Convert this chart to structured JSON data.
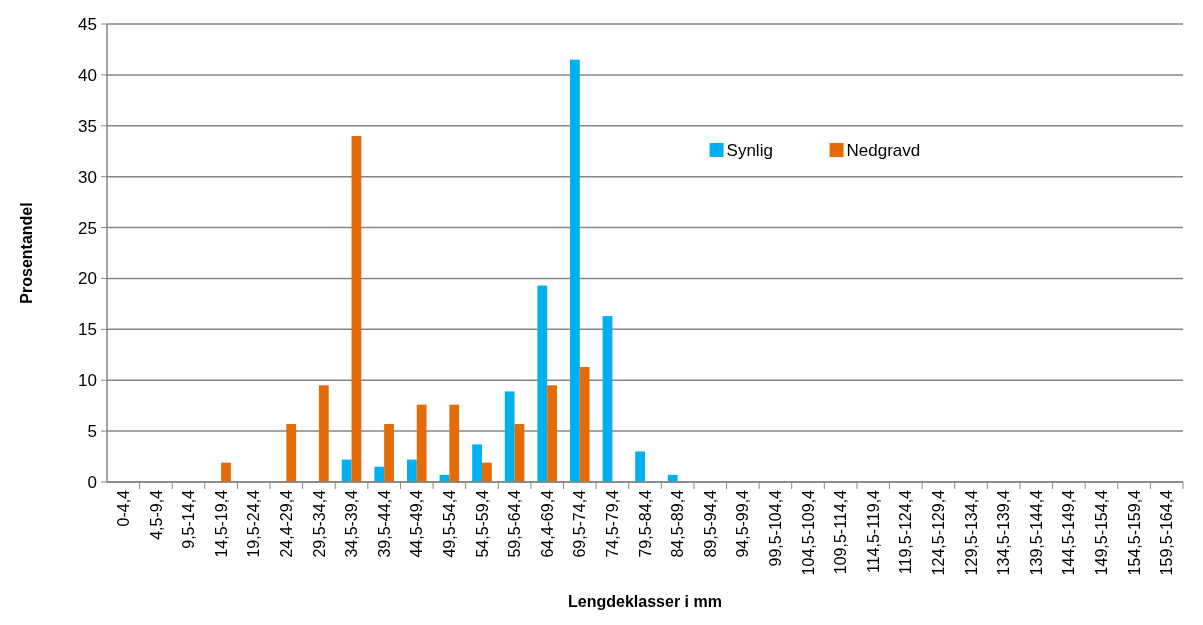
{
  "chart_data": {
    "type": "bar",
    "xlabel": "Lengdeklasser i mm",
    "ylabel": "Prosentandel",
    "categories": [
      "0-4,4",
      "4,5-9,4",
      "9,5-14,4",
      "14,5-19,4",
      "19,5-24,4",
      "24,4-29,4",
      "29,5-34,4",
      "34,5-39,4",
      "39,5-44,4",
      "44,5-49,4",
      "49,5-54,4",
      "54,5-59,4",
      "59,5-64,4",
      "64,4-69,4",
      "69,5-74,4",
      "74,5-79,4",
      "79,5-84,4",
      "84,5-89,4",
      "89,5-94,4",
      "94,5-99,4",
      "99,5-104,4",
      "104,5-109,4",
      "109,5-114,4",
      "114,5-119,4",
      "119,5-124,4",
      "124,5-129,4",
      "129,5-134,4",
      "134,5-139,4",
      "139,5-144,4",
      "144,5-149,4",
      "149,5-154,4",
      "154,5-159,4",
      "159,5-164,4"
    ],
    "series": [
      {
        "name": "Synlig",
        "color": "#00b0f0",
        "values": [
          0,
          0,
          0,
          0,
          0,
          0,
          0,
          2.2,
          1.5,
          2.2,
          0.7,
          3.7,
          8.9,
          19.3,
          41.5,
          16.3,
          3.0,
          0.7,
          0,
          0,
          0,
          0,
          0,
          0,
          0,
          0,
          0,
          0,
          0,
          0,
          0,
          0,
          0
        ]
      },
      {
        "name": "Nedgravd",
        "color": "#e36c09",
        "values": [
          0,
          0,
          0,
          1.9,
          0,
          5.7,
          9.5,
          34.0,
          5.7,
          7.6,
          7.6,
          1.9,
          5.7,
          9.5,
          11.3,
          0,
          0,
          0,
          0,
          0,
          0,
          0,
          0,
          0,
          0,
          0,
          0,
          0,
          0,
          0,
          0,
          0,
          0
        ]
      }
    ],
    "ylim": [
      0,
      45
    ],
    "yticks": [
      0,
      5,
      10,
      15,
      20,
      25,
      30,
      35,
      40,
      45
    ],
    "grid": "y",
    "legend": "top right"
  }
}
